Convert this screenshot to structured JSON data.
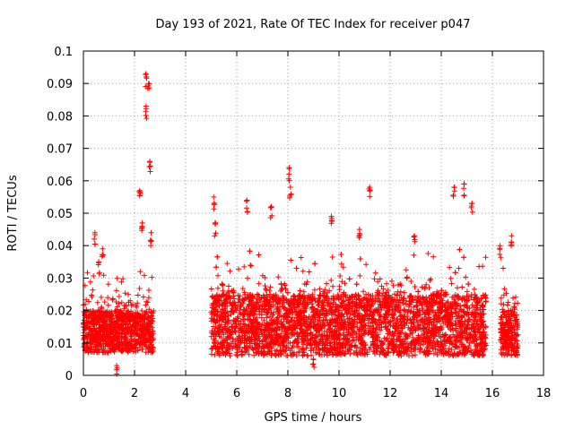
{
  "chart_data": {
    "type": "scatter",
    "title": "Day 193 of 2021, Rate Of TEC Index for receiver p047",
    "xlabel": "GPS time / hours",
    "ylabel": "ROTI / TECUs",
    "xlim": [
      0,
      18
    ],
    "ylim": [
      0,
      0.1
    ],
    "grid": true,
    "x_ticks": [
      0,
      2,
      4,
      6,
      8,
      10,
      12,
      14,
      16,
      18
    ],
    "x_tick_labels": [
      "0",
      "2",
      "4",
      "6",
      "8",
      "10",
      "12",
      "14",
      "16",
      "18"
    ],
    "y_ticks": [
      0,
      0.01,
      0.02,
      0.03,
      0.04,
      0.05,
      0.06,
      0.07,
      0.08,
      0.09,
      0.1
    ],
    "y_tick_labels": [
      "0",
      "0.01",
      "0.02",
      "0.03",
      "0.04",
      "0.05",
      "0.06",
      "0.07",
      "0.08",
      "0.09",
      "0.1"
    ],
    "marker": "+",
    "series_color": "#ff0000",
    "data_segments": [
      {
        "x_start": 0.0,
        "x_end": 2.75,
        "typical_min": 0.007,
        "typical_max": 0.02
      },
      {
        "x_start": 5.0,
        "x_end": 15.75,
        "typical_min": 0.006,
        "typical_max": 0.025
      },
      {
        "x_start": 16.3,
        "x_end": 17.0,
        "typical_min": 0.006,
        "typical_max": 0.02
      }
    ],
    "notable_points": [
      {
        "x": 0.45,
        "y": 0.044
      },
      {
        "x": 0.6,
        "y": 0.035
      },
      {
        "x": 0.75,
        "y": 0.039
      },
      {
        "x": 1.3,
        "y": 0.003
      },
      {
        "x": 2.2,
        "y": 0.057
      },
      {
        "x": 2.3,
        "y": 0.047
      },
      {
        "x": 2.45,
        "y": 0.093
      },
      {
        "x": 2.45,
        "y": 0.083
      },
      {
        "x": 2.55,
        "y": 0.09
      },
      {
        "x": 2.6,
        "y": 0.066
      },
      {
        "x": 2.65,
        "y": 0.044
      },
      {
        "x": 5.1,
        "y": 0.055
      },
      {
        "x": 5.15,
        "y": 0.047
      },
      {
        "x": 6.4,
        "y": 0.054
      },
      {
        "x": 7.35,
        "y": 0.052
      },
      {
        "x": 8.05,
        "y": 0.064
      },
      {
        "x": 8.1,
        "y": 0.058
      },
      {
        "x": 9.7,
        "y": 0.049
      },
      {
        "x": 10.8,
        "y": 0.045
      },
      {
        "x": 11.2,
        "y": 0.058
      },
      {
        "x": 12.95,
        "y": 0.043
      },
      {
        "x": 14.5,
        "y": 0.058
      },
      {
        "x": 14.9,
        "y": 0.059
      },
      {
        "x": 15.2,
        "y": 0.053
      },
      {
        "x": 16.75,
        "y": 0.043
      },
      {
        "x": 16.3,
        "y": 0.04
      },
      {
        "x": 9.0,
        "y": 0.005
      }
    ]
  }
}
